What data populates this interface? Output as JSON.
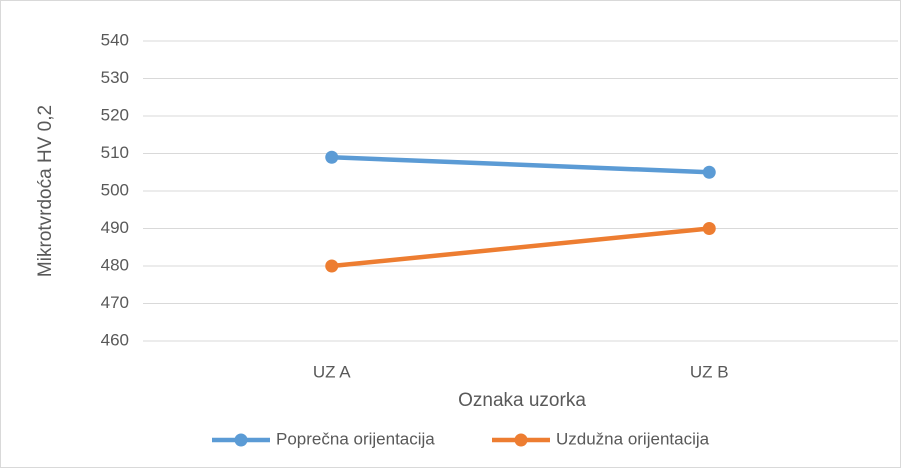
{
  "chart_data": {
    "type": "line",
    "categories": [
      "UZ A",
      "UZ B"
    ],
    "series": [
      {
        "name": "Poprečna orijentacija",
        "color": "#5b9bd5",
        "values": [
          509,
          505
        ]
      },
      {
        "name": "Uzdužna orijentacija",
        "color": "#ed7d31",
        "values": [
          480,
          490
        ]
      }
    ],
    "y_label": "Mikrotvrdoća HV 0,2",
    "x_label": "Oznaka uzorka",
    "ylim": [
      460,
      540
    ],
    "yticks": [
      460,
      470,
      480,
      490,
      500,
      510,
      520,
      530,
      540
    ],
    "grid": true,
    "legend": "bottom"
  }
}
